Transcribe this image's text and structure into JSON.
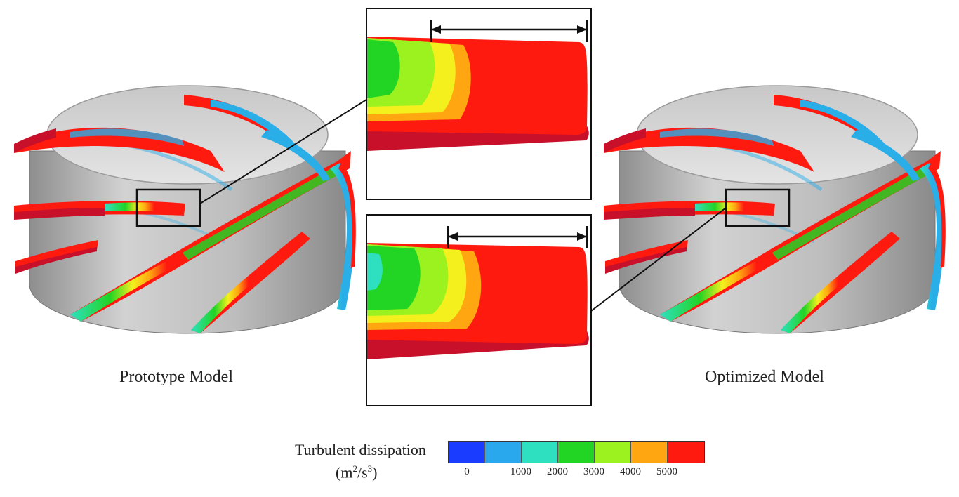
{
  "figure": {
    "left_caption": "Prototype Model",
    "right_caption": "Optimized Model"
  },
  "legend": {
    "title": "Turbulent dissipation",
    "unit_base": "(m",
    "unit_sup1": "2",
    "unit_mid": "/s",
    "unit_sup2": "3",
    "unit_end": ")",
    "colors": [
      "#1a3cff",
      "#2aa8ee",
      "#2ee0c0",
      "#22d424",
      "#9cf21e",
      "#ffa610",
      "#ff1a10"
    ],
    "ticks": [
      "0",
      "1000",
      "2000",
      "3000",
      "4000",
      "5000"
    ]
  },
  "palette": {
    "blade_red": "#ff1a10",
    "blade_dark": "#c8102a",
    "drum_gray": "#b8b8b8",
    "cyan": "#2aaee8",
    "green": "#22d424",
    "yellow": "#f4f01e",
    "orange": "#ffa610"
  }
}
